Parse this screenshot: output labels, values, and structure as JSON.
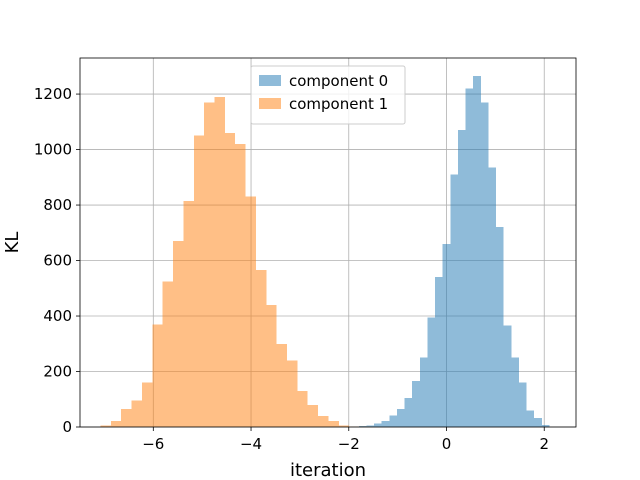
{
  "chart_data": {
    "type": "bar",
    "subtype": "histogram",
    "title": "",
    "xlabel": "iteration",
    "ylabel": "KL",
    "xlim": [
      -7.5,
      2.65
    ],
    "ylim": [
      0,
      1330
    ],
    "xticks": [
      -6,
      -4,
      -2,
      0,
      2
    ],
    "xtick_labels": [
      "−6",
      "−4",
      "−2",
      "0",
      "2"
    ],
    "yticks": [
      0,
      200,
      400,
      600,
      800,
      1000,
      1200
    ],
    "ytick_labels": [
      "0",
      "200",
      "400",
      "600",
      "800",
      "1000",
      "1200"
    ],
    "grid": true,
    "legend_position": "top-center",
    "series": [
      {
        "name": "component 0",
        "color": "#1f77b4",
        "opacity": 0.5,
        "bin_start": -1.95,
        "bin_width": 0.156,
        "values": [
          2,
          3,
          6,
          12,
          22,
          42,
          65,
          105,
          165,
          250,
          395,
          540,
          660,
          910,
          1070,
          1220,
          1265,
          1170,
          935,
          720,
          365,
          250,
          160,
          60,
          32,
          8
        ]
      },
      {
        "name": "component 1",
        "color": "#ff7f0e",
        "opacity": 0.5,
        "bin_start": -7.08,
        "bin_width": 0.212,
        "values": [
          5,
          22,
          65,
          95,
          160,
          370,
          525,
          670,
          815,
          1050,
          1170,
          1190,
          1060,
          1020,
          830,
          565,
          440,
          300,
          240,
          130,
          80,
          40,
          22,
          5,
          2,
          2
        ]
      }
    ]
  }
}
